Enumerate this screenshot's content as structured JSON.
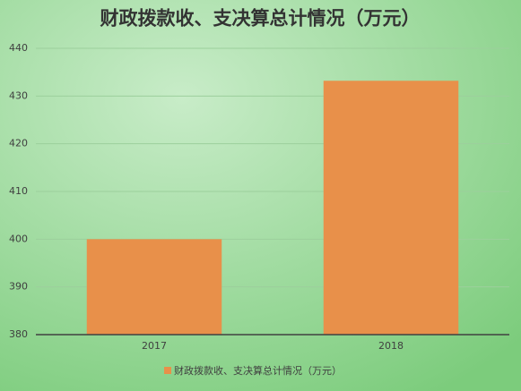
{
  "chart_data": {
    "type": "bar",
    "title": "财政拨款收、支决算总计情况（万元）",
    "categories": [
      "2017",
      "2018"
    ],
    "series": [
      {
        "name": "财政拨款收、支决算总计情况（万元）",
        "color": "#e8904a",
        "values": [
          400,
          433.2
        ]
      }
    ],
    "ylim": [
      380,
      440
    ],
    "yticks": [
      380,
      390,
      400,
      410,
      420,
      430,
      440
    ],
    "grid": true,
    "legend": "bottom"
  }
}
